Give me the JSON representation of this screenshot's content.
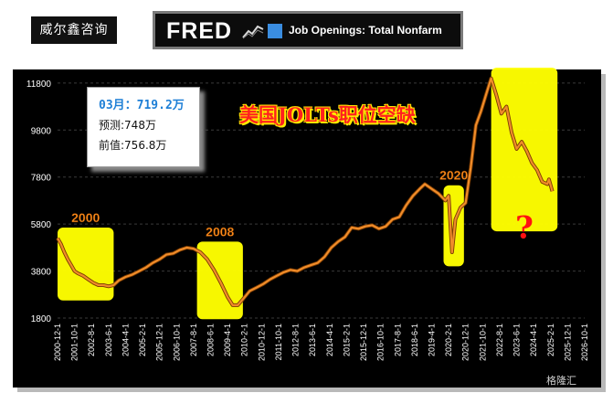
{
  "brand": "威尔鑫咨询",
  "header": {
    "logo": "FRED",
    "series_title": "Job Openings: Total Nonfarm"
  },
  "info_box": {
    "latest": "03月：719.2万",
    "forecast": "预测:748万",
    "previous": "前值:756.8万"
  },
  "headline": "美国JOLTs职位空缺",
  "watermark": "格隆汇",
  "colors": {
    "line": "#f08c2a",
    "highlight": "#ffff00",
    "background": "#000000",
    "tick_text": "#ffffff",
    "callout_text": "#ff8c1a",
    "question": "#ff1111"
  },
  "chart_data": {
    "type": "line",
    "title": "Job Openings: Total Nonfarm",
    "ylabel": "",
    "xlabel": "",
    "ylim": [
      1800,
      12300
    ],
    "y_ticks": [
      1800,
      3800,
      5800,
      7800,
      9800,
      11800
    ],
    "x_ticks": [
      "2000-12-1",
      "2001-10-1",
      "2002-8-1",
      "2003-6-1",
      "2004-4-1",
      "2005-2-1",
      "2005-12-1",
      "2006-10-1",
      "2007-8-1",
      "2008-6-1",
      "2009-4-1",
      "2010-2-1",
      "2010-12-1",
      "2011-10-1",
      "2012-8-1",
      "2013-6-1",
      "2014-4-1",
      "2015-2-1",
      "2015-12-1",
      "2016-10-1",
      "2017-8-1",
      "2018-6-1",
      "2019-4-1",
      "2020-2-1",
      "2020-12-1",
      "2021-10-1",
      "2022-8-1",
      "2023-6-1",
      "2024-4-1",
      "2025-2-1",
      "2025-12-1",
      "2026-10-1"
    ],
    "series": [
      {
        "points": [
          [
            "2000-12",
            5200
          ],
          [
            "2001-02",
            4950
          ],
          [
            "2001-04",
            4600
          ],
          [
            "2001-06",
            4300
          ],
          [
            "2001-08",
            4050
          ],
          [
            "2001-10",
            3800
          ],
          [
            "2001-12",
            3700
          ],
          [
            "2002-03",
            3600
          ],
          [
            "2002-06",
            3450
          ],
          [
            "2002-09",
            3300
          ],
          [
            "2002-12",
            3200
          ],
          [
            "2003-03",
            3200
          ],
          [
            "2003-06",
            3150
          ],
          [
            "2003-09",
            3200
          ],
          [
            "2003-12",
            3400
          ],
          [
            "2004-04",
            3550
          ],
          [
            "2004-08",
            3650
          ],
          [
            "2004-12",
            3800
          ],
          [
            "2005-04",
            3950
          ],
          [
            "2005-08",
            4150
          ],
          [
            "2005-12",
            4300
          ],
          [
            "2006-04",
            4500
          ],
          [
            "2006-08",
            4550
          ],
          [
            "2006-12",
            4700
          ],
          [
            "2007-04",
            4800
          ],
          [
            "2007-08",
            4750
          ],
          [
            "2007-12",
            4600
          ],
          [
            "2008-04",
            4300
          ],
          [
            "2008-08",
            3850
          ],
          [
            "2008-12",
            3300
          ],
          [
            "2009-04",
            2700
          ],
          [
            "2009-07",
            2350
          ],
          [
            "2009-10",
            2350
          ],
          [
            "2010-01",
            2600
          ],
          [
            "2010-05",
            2950
          ],
          [
            "2010-09",
            3100
          ],
          [
            "2011-01",
            3250
          ],
          [
            "2011-05",
            3450
          ],
          [
            "2011-09",
            3600
          ],
          [
            "2012-01",
            3750
          ],
          [
            "2012-05",
            3850
          ],
          [
            "2012-09",
            3800
          ],
          [
            "2013-01",
            3950
          ],
          [
            "2013-05",
            4050
          ],
          [
            "2013-09",
            4150
          ],
          [
            "2014-01",
            4400
          ],
          [
            "2014-05",
            4800
          ],
          [
            "2014-09",
            5050
          ],
          [
            "2015-01",
            5250
          ],
          [
            "2015-05",
            5650
          ],
          [
            "2015-09",
            5600
          ],
          [
            "2016-01",
            5700
          ],
          [
            "2016-05",
            5750
          ],
          [
            "2016-09",
            5600
          ],
          [
            "2017-01",
            5700
          ],
          [
            "2017-05",
            6000
          ],
          [
            "2017-09",
            6100
          ],
          [
            "2018-01",
            6600
          ],
          [
            "2018-05",
            7000
          ],
          [
            "2018-09",
            7300
          ],
          [
            "2018-12",
            7500
          ],
          [
            "2019-04",
            7300
          ],
          [
            "2019-08",
            7100
          ],
          [
            "2019-12",
            6800
          ],
          [
            "2020-02",
            7000
          ],
          [
            "2020-04",
            4600
          ],
          [
            "2020-06",
            6000
          ],
          [
            "2020-09",
            6500
          ],
          [
            "2020-12",
            6700
          ],
          [
            "2021-03",
            8200
          ],
          [
            "2021-06",
            10000
          ],
          [
            "2021-09",
            10600
          ],
          [
            "2021-12",
            11300
          ],
          [
            "2022-03",
            12000
          ],
          [
            "2022-06",
            11300
          ],
          [
            "2022-09",
            10500
          ],
          [
            "2022-12",
            10800
          ],
          [
            "2023-03",
            9700
          ],
          [
            "2023-06",
            9000
          ],
          [
            "2023-09",
            9300
          ],
          [
            "2023-12",
            8900
          ],
          [
            "2024-03",
            8400
          ],
          [
            "2024-06",
            8100
          ],
          [
            "2024-09",
            7600
          ],
          [
            "2024-12",
            7500
          ],
          [
            "2025-01",
            7700
          ],
          [
            "2025-03",
            7192
          ]
        ]
      }
    ],
    "annotations": [
      {
        "label": "2000",
        "from": "2000-12",
        "to": "2003-09"
      },
      {
        "label": "2008",
        "from": "2007-10",
        "to": "2010-01"
      },
      {
        "label": "2020",
        "from": "2019-11",
        "to": "2020-11"
      },
      {
        "label": "?",
        "from": "2022-03",
        "to": "2025-06"
      }
    ]
  }
}
